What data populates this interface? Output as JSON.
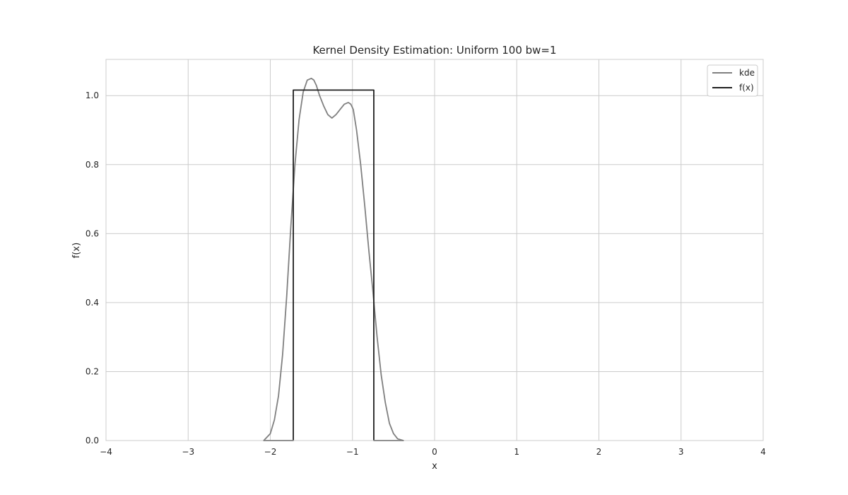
{
  "chart_data": {
    "type": "line",
    "title": "Kernel Density Estimation: Uniform 100 bw=1",
    "xlabel": "x",
    "ylabel": "f(x)",
    "xlim": [
      -4,
      4
    ],
    "ylim": [
      0,
      1.105
    ],
    "x_ticks": [
      -4,
      -3,
      -2,
      -1,
      0,
      1,
      2,
      3,
      4
    ],
    "x_tick_labels": [
      "−4",
      "−3",
      "−2",
      "−1",
      "0",
      "1",
      "2",
      "3",
      "4"
    ],
    "y_ticks": [
      0.0,
      0.2,
      0.4,
      0.6,
      0.8,
      1.0
    ],
    "y_tick_labels": [
      "0.0",
      "0.2",
      "0.4",
      "0.6",
      "0.8",
      "1.0"
    ],
    "grid": true,
    "legend_position": "top-right",
    "series": [
      {
        "name": "kde",
        "color": "#808080",
        "x": [
          -2.08,
          -2.0,
          -1.95,
          -1.9,
          -1.85,
          -1.8,
          -1.75,
          -1.7,
          -1.65,
          -1.6,
          -1.55,
          -1.5,
          -1.47,
          -1.44,
          -1.4,
          -1.35,
          -1.3,
          -1.25,
          -1.2,
          -1.15,
          -1.1,
          -1.05,
          -1.02,
          -0.99,
          -0.95,
          -0.9,
          -0.85,
          -0.8,
          -0.75,
          -0.7,
          -0.65,
          -0.6,
          -0.55,
          -0.5,
          -0.45,
          -0.38
        ],
        "y": [
          0.0,
          0.02,
          0.06,
          0.13,
          0.25,
          0.42,
          0.62,
          0.8,
          0.93,
          1.01,
          1.045,
          1.05,
          1.045,
          1.03,
          1.0,
          0.97,
          0.945,
          0.935,
          0.945,
          0.96,
          0.975,
          0.98,
          0.975,
          0.96,
          0.9,
          0.8,
          0.68,
          0.55,
          0.43,
          0.3,
          0.19,
          0.11,
          0.05,
          0.02,
          0.005,
          0.0
        ]
      },
      {
        "name": "f(x)",
        "color": "#1f1f1f",
        "x": [
          -2.08,
          -1.72,
          -1.72,
          -0.74,
          -0.74,
          -0.38
        ],
        "y": [
          0.0,
          0.0,
          1.016,
          1.016,
          0.0,
          0.0
        ]
      }
    ]
  }
}
